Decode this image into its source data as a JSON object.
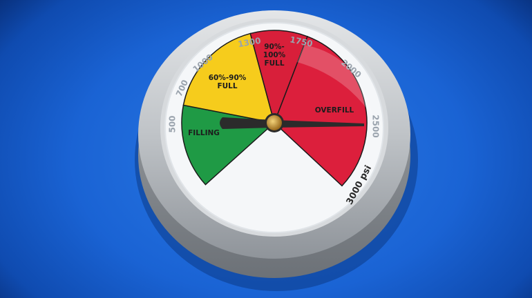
{
  "gauge": {
    "unit_label": "3000 psi",
    "ticks": [
      "500",
      "700",
      "1000",
      "1300",
      "1750",
      "2000",
      "2500"
    ],
    "zones": [
      {
        "label_lines": [
          "FILLING"
        ],
        "color": "#1f9a45"
      },
      {
        "label_lines": [
          "60%-90%",
          "FULL"
        ],
        "color": "#f6cc1c"
      },
      {
        "label_lines": [
          "90%-",
          "100%",
          "FULL"
        ],
        "color": "#d81f3a"
      },
      {
        "label_lines": [
          "OVERFILL"
        ],
        "color": "#dc1f3c"
      }
    ],
    "needle_psi": 2500
  },
  "colors": {
    "background": "#1a63d4",
    "bezel": "#c3c6ca",
    "face": "#f4f6f8",
    "needle": "#2b2b2b",
    "hub": "#c99a3a"
  }
}
